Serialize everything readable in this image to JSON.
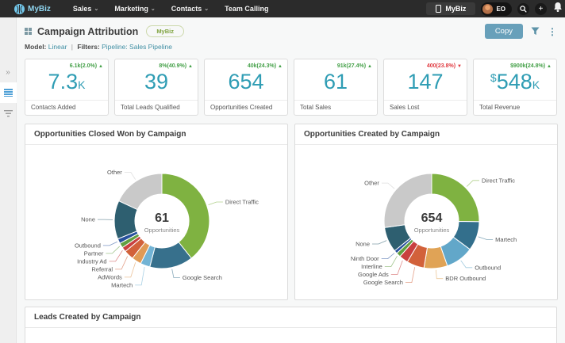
{
  "navbar": {
    "brand": "MyBiz",
    "menus": [
      {
        "label": "Sales"
      },
      {
        "label": "Marketing"
      },
      {
        "label": "Contacts"
      },
      {
        "label": "Team Calling"
      }
    ],
    "org_button": "MyBiz",
    "user_initials": "EO"
  },
  "header": {
    "title": "Campaign Attribution",
    "badge": "MyBiz",
    "model_label": "Model:",
    "model_value": "Linear",
    "separator": "|",
    "filters_label": "Filters:",
    "filters_value": "Pipeline: Sales Pipeline",
    "copy_label": "Copy"
  },
  "kpis": [
    {
      "delta": "6.1k(2.0%)",
      "arrow": "▲",
      "direction": "up",
      "value": "7.3",
      "suffix": "K",
      "label": "Contacts Added"
    },
    {
      "delta": "8%(40.9%)",
      "arrow": "▲",
      "direction": "up",
      "value": "39",
      "label": "Total Leads Qualified"
    },
    {
      "delta": "40k(24.3%)",
      "arrow": "▲",
      "direction": "up",
      "value": "654",
      "label": "Opportunities Created"
    },
    {
      "delta": "91k(27.4%)",
      "arrow": "▲",
      "direction": "up",
      "value": "61",
      "label": "Total Sales"
    },
    {
      "delta": "400(23.8%)",
      "arrow": "▼",
      "direction": "down",
      "value": "147",
      "label": "Sales Lost"
    },
    {
      "delta": "$900k(24.8%)",
      "arrow": "▲",
      "direction": "up",
      "prefix": "$",
      "value": "548",
      "suffix": "K",
      "label": "Total Revenue"
    }
  ],
  "chart_data": [
    {
      "type": "pie",
      "title": "Opportunities Closed Won by Campaign",
      "center_value": "61",
      "center_label": "Opportunities",
      "total": 61,
      "legend_position": "callout-labels",
      "slices": [
        {
          "label": "Direct Traffic",
          "value": 24,
          "color": "#7fb241"
        },
        {
          "label": "Google Search",
          "value": 9,
          "color": "#37708c"
        },
        {
          "label": "Martech",
          "value": 2,
          "color": "#72b3d4"
        },
        {
          "label": "AdWords",
          "value": 2,
          "color": "#e09a55"
        },
        {
          "label": "Referral",
          "value": 2,
          "color": "#d2613a"
        },
        {
          "label": "Industry Ad",
          "value": 1,
          "color": "#c9403f"
        },
        {
          "label": "Partner",
          "value": 1,
          "color": "#619f41"
        },
        {
          "label": "Outbound",
          "value": 1,
          "color": "#27519c"
        },
        {
          "label": "None",
          "value": 8,
          "color": "#2e5f70"
        },
        {
          "label": "Other",
          "value": 11,
          "color": "#c9c9c9"
        }
      ]
    },
    {
      "type": "pie",
      "title": "Opportunities Created by Campaign",
      "center_value": "654",
      "center_label": "Opportunities",
      "total": 654,
      "legend_position": "callout-labels",
      "slices": [
        {
          "label": "Direct Traffic",
          "value": 165,
          "color": "#7fb241"
        },
        {
          "label": "Martech",
          "value": 65,
          "color": "#336f8c"
        },
        {
          "label": "Outbound",
          "value": 62,
          "color": "#62a7c9"
        },
        {
          "label": "BDR Outbound",
          "value": 52,
          "color": "#e0a356"
        },
        {
          "label": "Google Search",
          "value": 39,
          "color": "#d2613a"
        },
        {
          "label": "Google Ads",
          "value": 20,
          "color": "#c9403f"
        },
        {
          "label": "Interline",
          "value": 10,
          "color": "#619f41"
        },
        {
          "label": "Ninth Door",
          "value": 7,
          "color": "#27519c"
        },
        {
          "label": "None",
          "value": 56,
          "color": "#2e5f70"
        },
        {
          "label": "Other",
          "value": 178,
          "color": "#c9c9c9"
        }
      ]
    }
  ],
  "bottom_panel": {
    "title": "Leads Created by Campaign"
  },
  "icons": {
    "collapse": "»",
    "kebab": "⋮",
    "plus": "+"
  },
  "colors": {
    "accent_teal": "#2f9db4",
    "delta_up": "#44a048",
    "delta_down": "#e0393f",
    "navbar_bg": "#2b2b2b",
    "copy_button": "#68a0ba",
    "chart_green": "#7fb241"
  }
}
